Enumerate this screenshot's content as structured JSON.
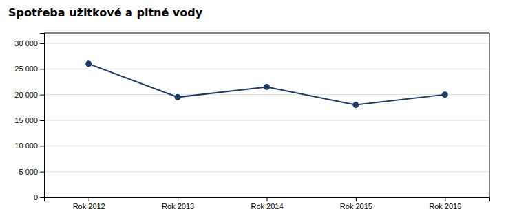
{
  "chart_data": {
    "type": "line",
    "title": "Spotřeba užitkové a pitné vody",
    "categories": [
      "Rok 2012",
      "Rok 2013",
      "Rok 2014",
      "Rok 2015",
      "Rok 2016"
    ],
    "values": [
      26000,
      19500,
      21500,
      18000,
      20000
    ],
    "color": "#1F3864",
    "marker": "circle",
    "ylim": [
      0,
      32000
    ],
    "yticks": [
      0,
      {
        "value": 5000,
        "label": "5 000"
      },
      {
        "value": 10000,
        "label": "10 000"
      },
      {
        "value": 15000,
        "label": "15 000"
      },
      {
        "value": 20000,
        "label": "20 000"
      },
      {
        "value": 25000,
        "label": "25 000"
      },
      {
        "value": 30000,
        "label": "30 000"
      }
    ],
    "grid": true
  }
}
